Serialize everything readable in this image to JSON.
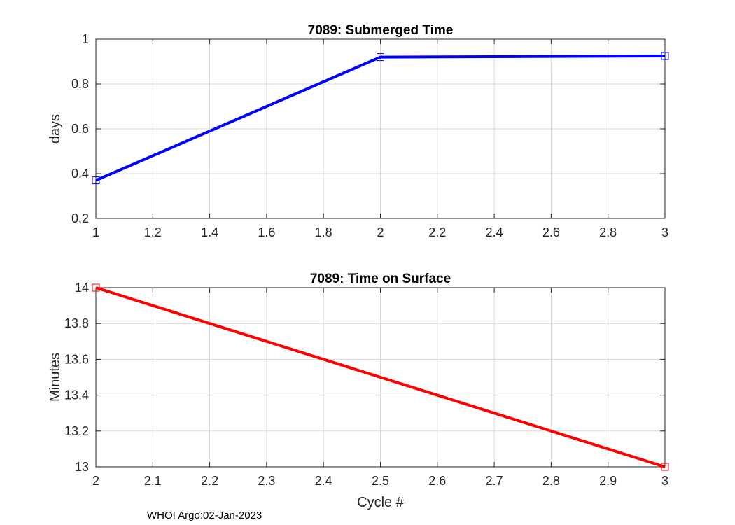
{
  "chart_data": [
    {
      "type": "line",
      "title": "7089: Submerged Time",
      "xlabel": "",
      "ylabel": "days",
      "xlim": [
        1,
        3
      ],
      "ylim": [
        0.2,
        1
      ],
      "xticks": [
        1,
        1.2,
        1.4,
        1.6,
        1.8,
        2,
        2.2,
        2.4,
        2.6,
        2.8,
        3
      ],
      "xtick_labels": [
        "1",
        "1.2",
        "1.4",
        "1.6",
        "1.8",
        "2",
        "2.2",
        "2.4",
        "2.6",
        "2.8",
        "3"
      ],
      "yticks": [
        0.2,
        0.4,
        0.6,
        0.8,
        1
      ],
      "ytick_labels": [
        "0.2",
        "0.4",
        "0.6",
        "0.8",
        "1"
      ],
      "grid": true,
      "series": [
        {
          "name": "Submerged Time",
          "color": "#0000ff",
          "marker": "square",
          "x": [
            1,
            2,
            3
          ],
          "y": [
            0.37,
            0.92,
            0.925
          ]
        }
      ]
    },
    {
      "type": "line",
      "title": "7089: Time on Surface",
      "xlabel": "Cycle #",
      "ylabel": "Minutes",
      "xlim": [
        2,
        3
      ],
      "ylim": [
        13,
        14
      ],
      "xticks": [
        2,
        2.1,
        2.2,
        2.3,
        2.4,
        2.5,
        2.6,
        2.7,
        2.8,
        2.9,
        3
      ],
      "xtick_labels": [
        "2",
        "2.1",
        "2.2",
        "2.3",
        "2.4",
        "2.5",
        "2.6",
        "2.7",
        "2.8",
        "2.9",
        "3"
      ],
      "yticks": [
        13,
        13.2,
        13.4,
        13.6,
        13.8,
        14
      ],
      "ytick_labels": [
        "13",
        "13.2",
        "13.4",
        "13.6",
        "13.8",
        "14"
      ],
      "grid": true,
      "series": [
        {
          "name": "Time on Surface",
          "color": "#ff0000",
          "marker": "square",
          "x": [
            2,
            3
          ],
          "y": [
            14,
            13
          ]
        }
      ]
    }
  ],
  "footer": {
    "text": "WHOI Argo:02-Jan-2023"
  }
}
